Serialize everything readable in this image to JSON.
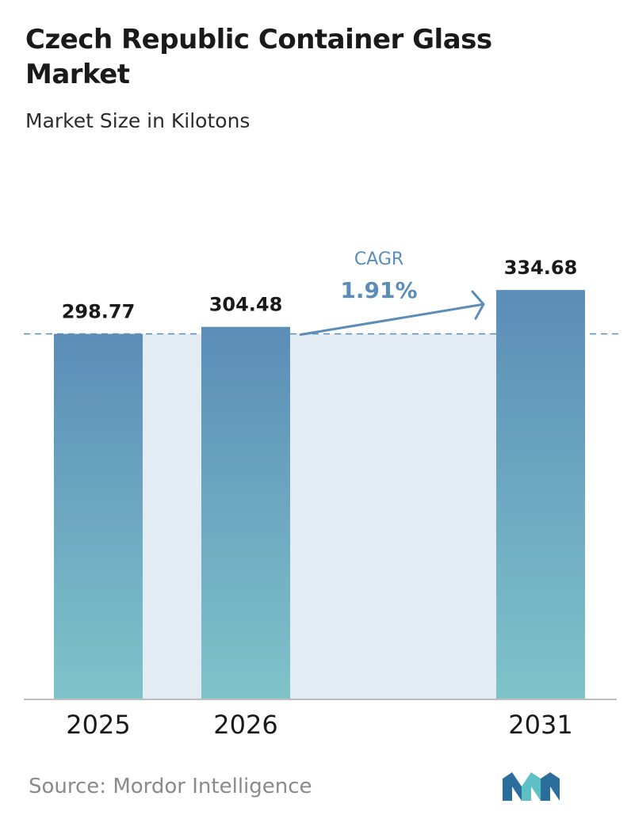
{
  "title": "Czech Republic Container Glass Market",
  "subtitle": "Market Size in Kilotons",
  "source": "Source:  Mordor Intelligence",
  "colors": {
    "bar_top": "#5b8db8",
    "bar_bottom": "#7fc3c9",
    "band": "#e3ebf3",
    "dash": "#5b8db8",
    "cagr": "#5b8db8",
    "axis": "#bdbdbd",
    "logo_dark": "#2c6e9b",
    "logo_light": "#5cc0c6"
  },
  "chart_data": {
    "type": "bar",
    "categories": [
      "2025",
      "2026",
      "2031"
    ],
    "values": [
      298.77,
      304.48,
      334.68
    ],
    "value_labels": [
      "298.77",
      "304.48",
      "334.68"
    ],
    "title": "Czech Republic Container Glass Market",
    "subtitle": "Market Size in Kilotons",
    "unit": "Kilotons",
    "cagr": {
      "label": "CAGR",
      "value": "1.91%"
    },
    "reference_line": 298.77,
    "grid": false,
    "legend": "none"
  }
}
